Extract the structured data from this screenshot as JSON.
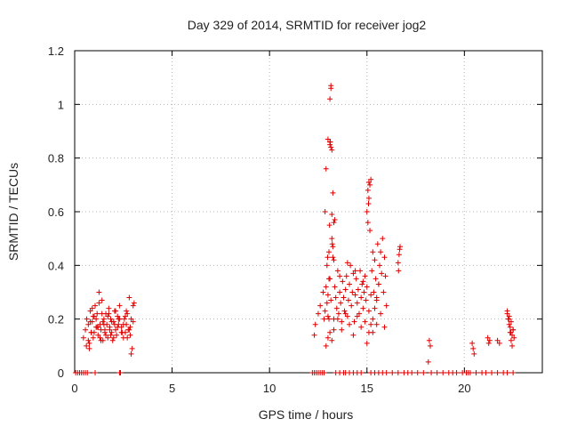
{
  "chart_data": {
    "type": "scatter",
    "title": "Day 329 of 2014, SRMTID for receiver jog2",
    "xlabel": "GPS time / hours",
    "ylabel": "SRMTID / TECUs",
    "xlim": [
      0,
      24
    ],
    "ylim": [
      0,
      1.2
    ],
    "xticks": [
      0,
      5,
      10,
      15,
      20
    ],
    "xtick_labels": [
      "0",
      "5",
      "10",
      "15",
      "20"
    ],
    "yticks": [
      0,
      0.2,
      0.4,
      0.6,
      0.8,
      1.0,
      1.2
    ],
    "ytick_labels": [
      "0",
      "0.2",
      "0.4",
      "0.6",
      "0.8",
      "1",
      "1.2"
    ],
    "grid": true,
    "marker": "plus",
    "series": [
      {
        "name": "SRMTID",
        "color": "#e00000",
        "x": [
          0.05,
          0.15,
          0.25,
          0.35,
          0.45,
          0.55,
          0.65,
          1.05,
          2.3,
          2.35,
          12.2,
          12.3,
          12.4,
          12.5,
          12.6,
          12.7,
          12.8,
          13.4,
          13.6,
          13.8,
          13.9,
          14.1,
          14.3,
          14.5,
          14.7,
          15.2,
          15.4,
          15.6,
          15.8,
          16.0,
          16.3,
          16.6,
          16.9,
          17.1,
          17.3,
          17.6,
          17.9,
          18.3,
          18.6,
          18.9,
          19.2,
          19.4,
          19.6,
          19.9,
          20.1,
          20.2,
          20.3,
          20.6,
          20.9,
          21.1,
          21.4,
          21.7,
          22.0,
          22.2,
          22.5,
          0.45,
          0.55,
          0.62,
          0.7,
          0.75,
          0.8,
          0.85,
          0.9,
          0.95,
          1.0,
          1.05,
          1.1,
          1.15,
          1.2,
          1.25,
          1.3,
          1.35,
          1.4,
          1.45,
          1.5,
          1.55,
          1.6,
          1.65,
          1.7,
          1.75,
          1.8,
          1.85,
          1.9,
          1.95,
          2.0,
          2.05,
          2.1,
          2.15,
          2.2,
          2.25,
          2.3,
          2.4,
          2.5,
          2.55,
          2.6,
          2.65,
          2.7,
          2.75,
          2.8,
          2.85,
          2.9,
          2.95,
          3.0,
          3.05,
          0.6,
          0.7,
          0.8,
          0.9,
          1.0,
          1.1,
          1.2,
          1.3,
          1.4,
          1.5,
          1.6,
          1.7,
          1.8,
          1.9,
          2.0,
          2.1,
          2.2,
          2.3,
          2.4,
          2.5,
          2.6,
          2.7,
          2.8,
          2.9,
          3.0,
          0.75,
          0.85,
          0.95,
          1.15,
          1.25,
          1.35,
          1.45,
          1.55,
          1.75,
          1.85,
          2.05,
          2.25,
          2.45,
          2.65,
          2.85,
          12.3,
          12.35,
          12.5,
          12.6,
          12.75,
          12.8,
          12.85,
          12.9,
          13.0,
          13.05,
          13.05,
          13.1,
          13.1,
          13.15,
          13.15,
          13.2,
          13.2,
          13.25,
          13.3,
          13.3,
          13.35,
          13.4,
          13.45,
          13.5,
          13.55,
          13.6,
          13.65,
          13.7,
          13.75,
          13.8,
          13.85,
          13.9,
          13.95,
          14.0,
          14.05,
          14.1,
          14.15,
          14.2,
          14.25,
          14.3,
          14.35,
          14.4,
          14.45,
          14.5,
          14.55,
          14.6,
          14.65,
          14.7,
          14.75,
          14.8,
          14.85,
          14.9,
          14.95,
          15.0,
          15.05,
          15.1,
          15.15,
          15.2,
          15.25,
          15.3,
          15.35,
          15.4,
          15.45,
          15.5,
          15.55,
          15.6,
          15.65,
          15.7,
          15.75,
          15.8,
          15.85,
          15.9,
          15.95,
          16.0,
          12.9,
          13.0,
          13.1,
          13.2,
          13.3,
          13.5,
          13.7,
          13.9,
          14.1,
          14.3,
          14.5,
          14.7,
          14.9,
          15.1,
          15.3,
          15.5,
          15.7,
          15.9,
          12.95,
          13.25,
          13.6,
          14.0,
          14.4,
          14.8,
          15.2,
          15.6,
          15.0,
          15.05,
          15.1,
          15.15,
          15.08,
          12.85,
          12.95,
          13.05,
          13.15,
          13.0,
          13.1,
          13.12,
          13.2,
          13.25,
          13.3,
          13.35,
          13.15,
          12.98,
          13.08,
          13.22,
          12.9,
          13.0,
          13.1,
          15.0,
          15.1,
          15.2,
          15.3,
          15.4,
          15.5,
          16.6,
          16.65,
          16.7,
          16.62,
          16.68,
          18.2,
          18.25,
          18.15,
          20.4,
          20.45,
          20.5,
          21.2,
          21.25,
          21.3,
          21.7,
          21.8,
          22.2,
          22.25,
          22.3,
          22.35,
          22.4,
          22.45,
          22.5,
          22.55,
          22.3,
          22.4,
          22.2,
          22.35,
          22.45,
          22.28,
          22.38,
          22.5
        ],
        "y": [
          0,
          0,
          0,
          0,
          0,
          0,
          0,
          0,
          0,
          0,
          0,
          0,
          0,
          0,
          0,
          0,
          0,
          0,
          0,
          0,
          0,
          0,
          0,
          0,
          0,
          0,
          0,
          0,
          0,
          0,
          0,
          0,
          0,
          0,
          0,
          0,
          0,
          0,
          0,
          0,
          0,
          0,
          0,
          0,
          0,
          0,
          0,
          0,
          0,
          0,
          0,
          0,
          0,
          0,
          0,
          0.13,
          0.16,
          0.2,
          0.18,
          0.11,
          0.23,
          0.15,
          0.19,
          0.13,
          0.21,
          0.25,
          0.17,
          0.22,
          0.14,
          0.3,
          0.18,
          0.16,
          0.27,
          0.12,
          0.2,
          0.15,
          0.22,
          0.18,
          0.13,
          0.24,
          0.17,
          0.2,
          0.15,
          0.12,
          0.19,
          0.23,
          0.16,
          0.14,
          0.21,
          0.18,
          0.25,
          0.17,
          0.13,
          0.2,
          0.15,
          0.18,
          0.22,
          0.16,
          0.28,
          0.14,
          0.2,
          0.09,
          0.25,
          0.26,
          0.1,
          0.12,
          0.19,
          0.24,
          0.15,
          0.2,
          0.17,
          0.13,
          0.22,
          0.18,
          0.14,
          0.21,
          0.16,
          0.19,
          0.13,
          0.23,
          0.17,
          0.2,
          0.15,
          0.18,
          0.21,
          0.13,
          0.16,
          0.07,
          0.19,
          0.09,
          0.15,
          0.21,
          0.17,
          0.26,
          0.12,
          0.19,
          0.16,
          0.22,
          0.14,
          0.18,
          0.2,
          0.15,
          0.23,
          0.17,
          0.14,
          0.18,
          0.22,
          0.25,
          0.3,
          0.2,
          0.6,
          0.76,
          0.87,
          0.35,
          0.45,
          0.86,
          1.02,
          1.07,
          0.84,
          0.5,
          0.59,
          0.67,
          0.42,
          0.2,
          0.32,
          0.28,
          0.24,
          0.38,
          0.22,
          0.3,
          0.26,
          0.19,
          0.34,
          0.28,
          0.23,
          0.31,
          0.36,
          0.21,
          0.27,
          0.33,
          0.4,
          0.25,
          0.3,
          0.37,
          0.19,
          0.29,
          0.35,
          0.26,
          0.31,
          0.22,
          0.38,
          0.28,
          0.33,
          0.24,
          0.3,
          0.36,
          0.27,
          0.32,
          0.56,
          0.65,
          0.7,
          0.72,
          0.38,
          0.45,
          0.3,
          0.42,
          0.35,
          0.27,
          0.48,
          0.33,
          0.4,
          0.45,
          0.37,
          0.5,
          0.3,
          0.43,
          0.36,
          0.25,
          0.1,
          0.13,
          0.15,
          0.12,
          0.16,
          0.2,
          0.16,
          0.22,
          0.18,
          0.14,
          0.21,
          0.17,
          0.19,
          0.23,
          0.15,
          0.18,
          0.22,
          0.17,
          0.4,
          0.43,
          0.36,
          0.41,
          0.38,
          0.34,
          0.29,
          0.33,
          0.6,
          0.68,
          0.71,
          0.53,
          0.63,
          0.23,
          0.26,
          0.2,
          0.27,
          0.21,
          0.85,
          0.86,
          0.83,
          0.47,
          0.56,
          0.57,
          1.06,
          0.43,
          0.55,
          0.48,
          0.32,
          0.29,
          0.35,
          0.11,
          0.15,
          0.18,
          0.2,
          0.24,
          0.28,
          0.41,
          0.44,
          0.47,
          0.38,
          0.46,
          0.12,
          0.1,
          0.04,
          0.11,
          0.09,
          0.07,
          0.13,
          0.11,
          0.12,
          0.12,
          0.11,
          0.22,
          0.2,
          0.18,
          0.15,
          0.12,
          0.1,
          0.16,
          0.13,
          0.21,
          0.19,
          0.23,
          0.17,
          0.14,
          0.2,
          0.15,
          0.16
        ]
      }
    ]
  }
}
